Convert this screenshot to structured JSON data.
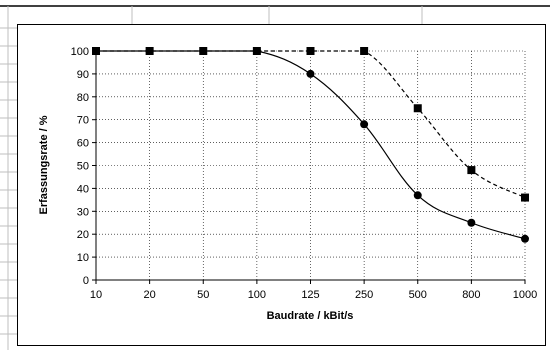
{
  "chart_data": {
    "type": "line",
    "title": "",
    "xlabel": "Baudrate / kBit/s",
    "ylabel": "Erfassungsrate / %",
    "categories": [
      "10",
      "20",
      "50",
      "100",
      "125",
      "250",
      "500",
      "800",
      "1000"
    ],
    "ylim": [
      0,
      100
    ],
    "yticks": [
      "0",
      "10",
      "20",
      "30",
      "40",
      "50",
      "60",
      "70",
      "80",
      "90",
      "100"
    ],
    "grid": true,
    "legend": "none",
    "series": [
      {
        "marker": "circle",
        "line_style": "solid",
        "color": "#000000",
        "values": [
          100,
          100,
          100,
          100,
          90,
          68,
          37,
          25,
          18
        ]
      },
      {
        "marker": "square",
        "line_style": "dashed",
        "color": "#000000",
        "values": [
          100,
          100,
          100,
          100,
          100,
          100,
          75,
          48,
          36
        ]
      }
    ]
  }
}
